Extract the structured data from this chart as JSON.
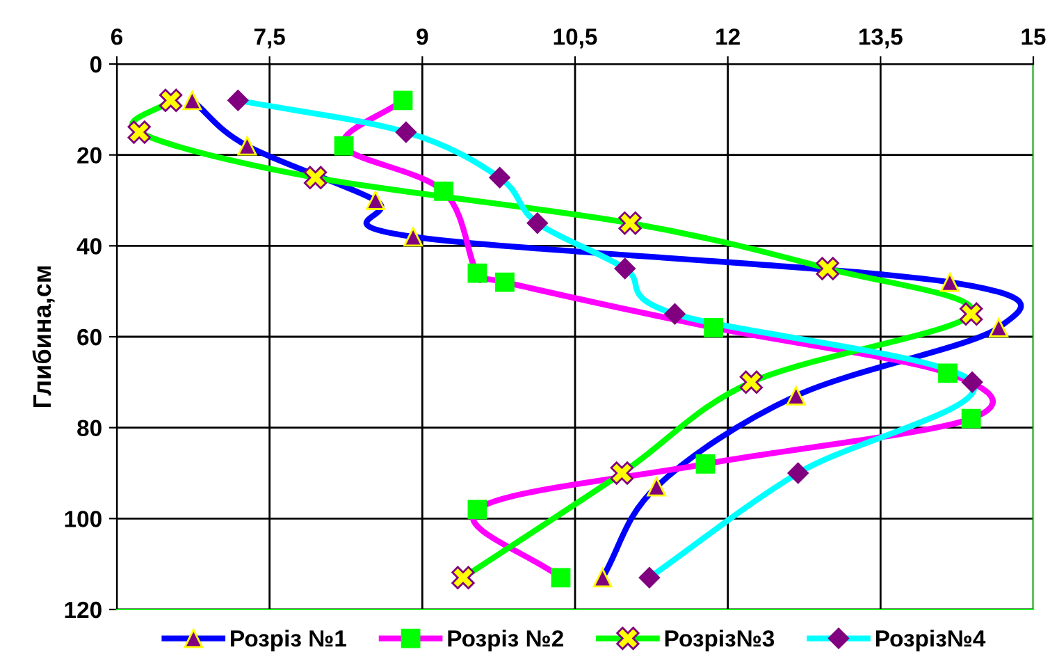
{
  "chart_data": {
    "type": "line",
    "ylabel": "Глибина,см",
    "xlim": [
      6,
      15
    ],
    "xticks": [
      6,
      {
        "value": 7.5,
        "label": "7,5"
      },
      9,
      {
        "value": 10.5,
        "label": "10,5"
      },
      12,
      {
        "value": 13.5,
        "label": "13,5"
      },
      15
    ],
    "ylim": [
      120,
      0
    ],
    "yticks": [
      0,
      20,
      40,
      60,
      80,
      100,
      120
    ],
    "grid": true,
    "legend": "bottom",
    "series": [
      {
        "name": "Розріз №1",
        "color": "#0000ff",
        "marker": "triangle",
        "x": [
          6.74,
          7.28,
          8.54,
          8.91,
          14.18,
          14.66,
          12.67,
          11.3,
          10.77
        ],
        "values": [
          8,
          18,
          30,
          38,
          48,
          58,
          73,
          93,
          113
        ]
      },
      {
        "name": "Розріз №2",
        "color": "#ff00ff",
        "marker": "square",
        "x": [
          8.81,
          8.23,
          9.21,
          9.54,
          9.81,
          11.86,
          14.16,
          14.39,
          11.78,
          9.54,
          10.36
        ],
        "values": [
          8,
          18,
          28,
          46,
          48,
          58,
          68,
          78,
          88,
          98,
          113
        ]
      },
      {
        "name": "Розріз№3",
        "color": "#00ff00",
        "marker": "cross",
        "x": [
          6.53,
          6.22,
          7.95,
          11.04,
          12.98,
          14.39,
          12.23,
          10.96,
          9.4
        ],
        "values": [
          8,
          15,
          25,
          35,
          45,
          55,
          70,
          90,
          113
        ]
      },
      {
        "name": "Розріз№4",
        "color": "#00ffff",
        "marker": "diamond",
        "x": [
          7.19,
          8.84,
          9.76,
          10.13,
          10.99,
          11.48,
          14.4,
          12.69,
          11.23
        ],
        "values": [
          8,
          15,
          25,
          35,
          45,
          55,
          70,
          90,
          113
        ]
      }
    ]
  }
}
